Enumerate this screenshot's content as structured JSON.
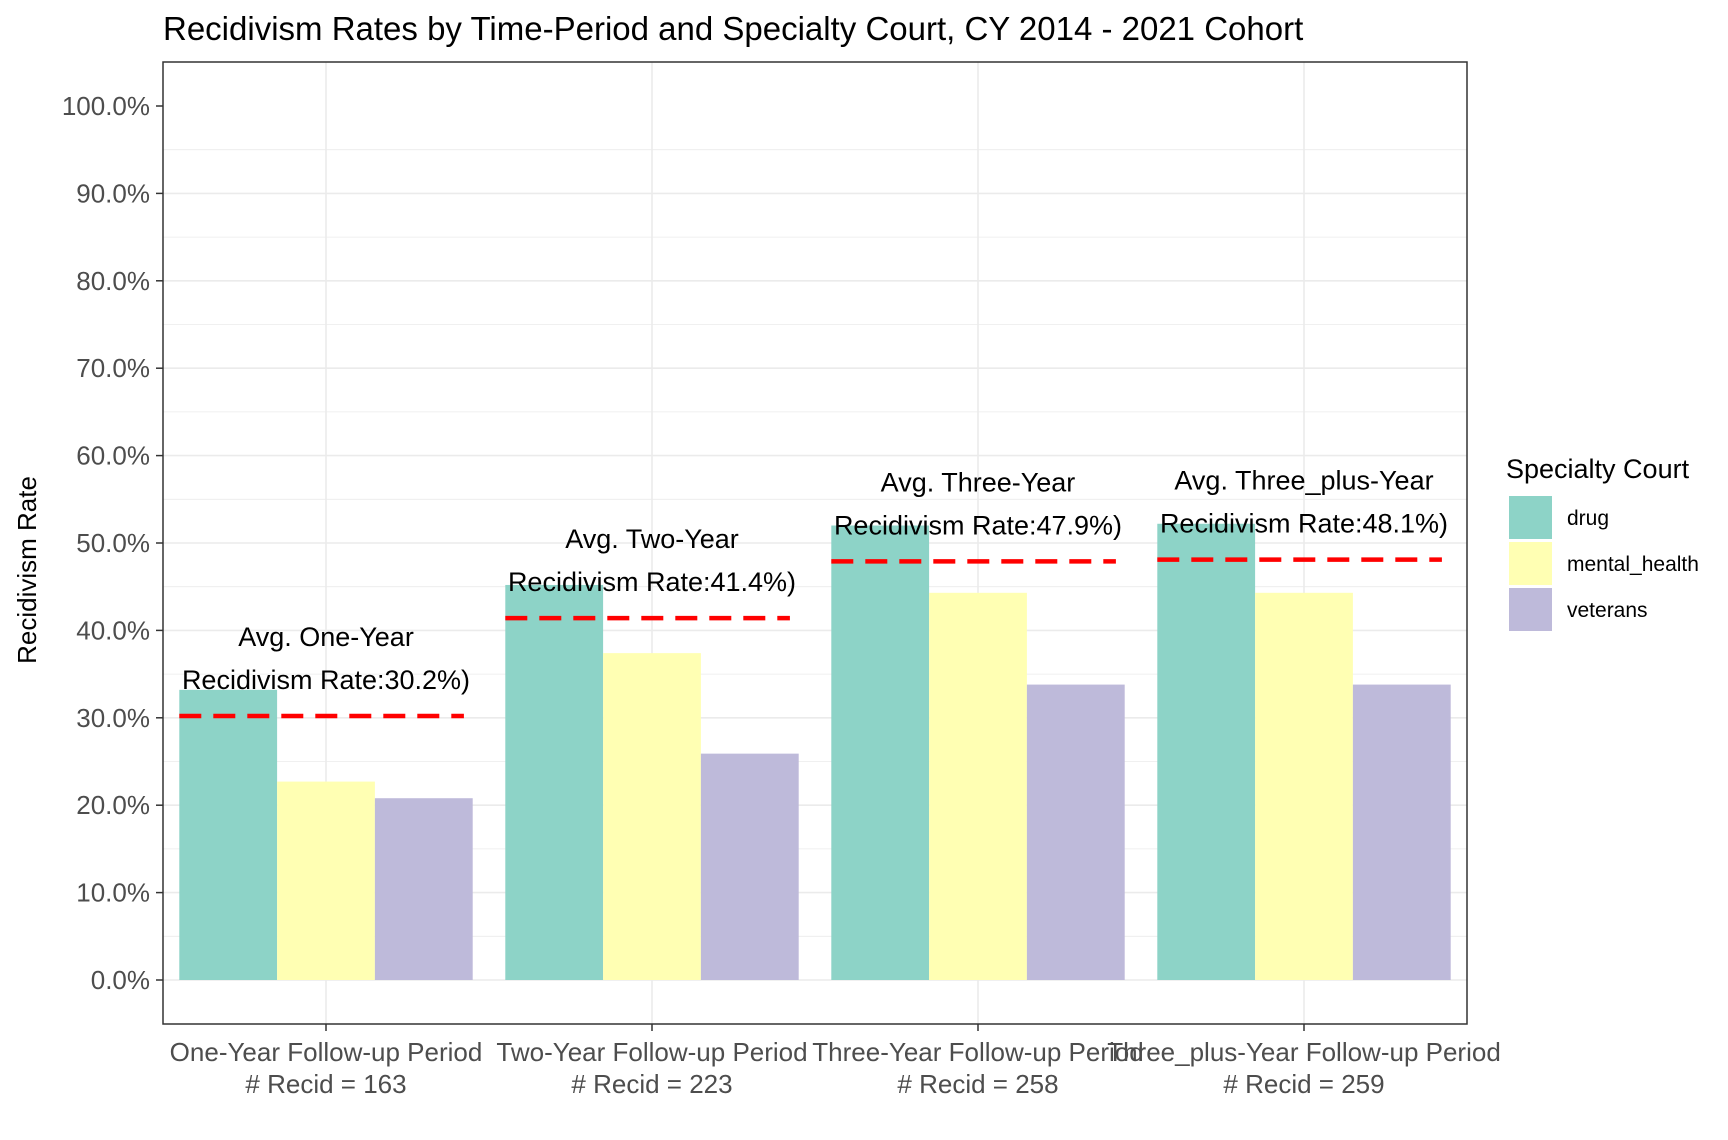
{
  "chart_data": {
    "type": "bar",
    "title": "Recidivism Rates by Time-Period and Specialty Court, CY 2014 - 2021 Cohort",
    "xlabel": "",
    "ylabel": "Recidivism Rate",
    "ylim": [
      -0.05,
      1.05
    ],
    "y_ticks": [
      "0.0%",
      "10.0%",
      "20.0%",
      "30.0%",
      "40.0%",
      "50.0%",
      "60.0%",
      "70.0%",
      "80.0%",
      "90.0%",
      "100.0%"
    ],
    "categories": [
      "One-Year Follow-up Period\n# Recid = 163",
      "Two-Year Follow-up Period\n# Recid = 223",
      "Three-Year Follow-up Period\n# Recid = 258",
      "Three_plus-Year Follow-up Period\n# Recid = 259"
    ],
    "series": [
      {
        "name": "drug",
        "color": "#8DD3C7",
        "values": [
          0.332,
          0.452,
          0.52,
          0.522
        ]
      },
      {
        "name": "mental_health",
        "color": "#FFFFB3",
        "values": [
          0.227,
          0.374,
          0.443,
          0.443
        ]
      },
      {
        "name": "veterans",
        "color": "#BEBADA",
        "values": [
          0.208,
          0.259,
          0.338,
          0.338
        ]
      }
    ],
    "averages": [
      0.302,
      0.414,
      0.479,
      0.481
    ],
    "average_line_color": "#FF0000",
    "annotations": [
      [
        "Avg. One-Year",
        "Recidivism Rate:30.2%)"
      ],
      [
        "Avg. Two-Year",
        "Recidivism Rate:41.4%)"
      ],
      [
        "Avg. Three-Year",
        "Recidivism Rate:47.9%)"
      ],
      [
        "Avg. Three_plus-Year",
        "Recidivism Rate:48.1%)"
      ]
    ],
    "legend": {
      "title": "Specialty Court",
      "position": "right"
    },
    "grid": true
  }
}
